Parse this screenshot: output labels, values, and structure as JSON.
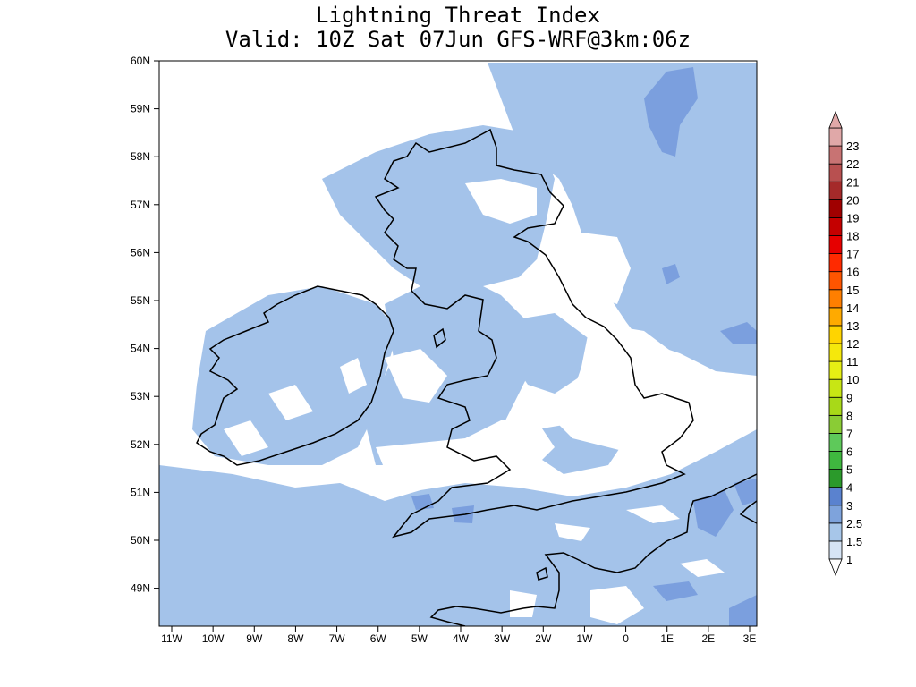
{
  "title": {
    "line1": "Lightning Threat Index",
    "line2": "Valid: 10Z Sat 07Jun GFS-WRF@3km:06z"
  },
  "map": {
    "lat_labels": [
      "60N",
      "59N",
      "58N",
      "57N",
      "56N",
      "55N",
      "54N",
      "53N",
      "52N",
      "51N",
      "50N",
      "49N"
    ],
    "lon_labels": [
      "11W",
      "10W",
      "9W",
      "8W",
      "7W",
      "6W",
      "5W",
      "4W",
      "3W",
      "2W",
      "1W",
      "0",
      "1E",
      "2E",
      "3E"
    ],
    "region": "British Isles and north-west France"
  },
  "colorbar": {
    "labels": [
      "1",
      "1.5",
      "2.5",
      "3",
      "4",
      "5",
      "6",
      "7",
      "8",
      "9",
      "10",
      "11",
      "12",
      "13",
      "14",
      "15",
      "16",
      "17",
      "18",
      "19",
      "20",
      "21",
      "22",
      "23"
    ],
    "colors": [
      "#d6e4f5",
      "#a7c6e9",
      "#7ea3dc",
      "#5a82cf",
      "#2b9a2b",
      "#3fb83f",
      "#5ec95a",
      "#8acc35",
      "#a8d918",
      "#c8e614",
      "#e6ef14",
      "#f5e80c",
      "#ffd400",
      "#ffaa00",
      "#ff7f00",
      "#ff5500",
      "#ff2a00",
      "#e60000",
      "#c40000",
      "#a00000",
      "#a52a2a",
      "#b85050",
      "#c87373",
      "#e0a8a8"
    ]
  },
  "colors": {
    "land_low": "#a4c3ea",
    "mid": "#7b9fde",
    "coast": "#000000"
  }
}
